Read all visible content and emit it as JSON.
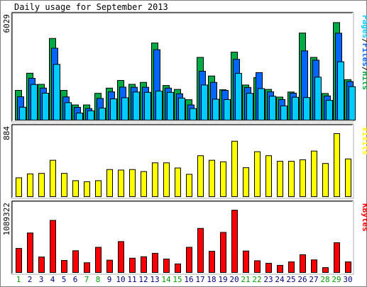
{
  "title": "Daily usage for September 2013",
  "days": [
    "1",
    "2",
    "3",
    "4",
    "5",
    "6",
    "7",
    "8",
    "9",
    "10",
    "11",
    "12",
    "13",
    "14",
    "15",
    "16",
    "17",
    "18",
    "19",
    "20",
    "21",
    "22",
    "23",
    "24",
    "25",
    "26",
    "27",
    "28",
    "29",
    "30"
  ],
  "weekend_days": [
    "1",
    "7",
    "8",
    "14",
    "15",
    "21",
    "22",
    "28",
    "29"
  ],
  "colors": {
    "hits": "#00aa44",
    "files": "#0066ff",
    "pages": "#00ccff",
    "visits": "#ffff00",
    "kbytes": "#ff0000",
    "weekend": "#00a000",
    "weekday": "#000080",
    "frame": "#808080"
  },
  "chart_data": [
    {
      "type": "bar",
      "title": "Daily usage for September 2013",
      "ymax_label": "6029",
      "ylabel_parts": [
        "Pages",
        "/",
        "Files",
        "/",
        "Hits"
      ],
      "ylim": [
        0,
        6029
      ],
      "categories": [
        "1",
        "2",
        "3",
        "4",
        "5",
        "6",
        "7",
        "8",
        "9",
        "10",
        "11",
        "12",
        "13",
        "14",
        "15",
        "16",
        "17",
        "18",
        "19",
        "20",
        "21",
        "22",
        "23",
        "24",
        "25",
        "26",
        "27",
        "28",
        "29",
        "30"
      ],
      "series": [
        {
          "name": "Hits",
          "values": [
            1820,
            2870,
            2190,
            5000,
            1820,
            930,
            930,
            1640,
            1960,
            2430,
            2190,
            2310,
            4720,
            2120,
            1880,
            1250,
            3840,
            2700,
            1860,
            4160,
            2150,
            2600,
            1880,
            1410,
            1720,
            5330,
            3840,
            1630,
            5970,
            2480
          ]
        },
        {
          "name": "Files",
          "values": [
            1430,
            2560,
            1960,
            4400,
            1420,
            780,
            710,
            1330,
            1730,
            2020,
            2010,
            2010,
            4310,
            1960,
            1610,
            930,
            2990,
            2310,
            1820,
            3720,
            2000,
            2910,
            1730,
            1260,
            1650,
            4240,
            3670,
            1480,
            5320,
            2360
          ]
        },
        {
          "name": "Pages",
          "values": [
            790,
            2180,
            1650,
            3410,
            1070,
            430,
            570,
            740,
            1300,
            1370,
            1720,
            1700,
            1780,
            1700,
            1350,
            710,
            2150,
            1280,
            1260,
            2860,
            1640,
            1930,
            1460,
            870,
            1400,
            1380,
            2630,
            1210,
            3570,
            2050
          ]
        }
      ]
    },
    {
      "type": "bar",
      "ymax_label": "884",
      "ylabel_parts": [
        "Visits"
      ],
      "ylim": [
        0,
        884
      ],
      "categories": [
        "1",
        "2",
        "3",
        "4",
        "5",
        "6",
        "7",
        "8",
        "9",
        "10",
        "11",
        "12",
        "13",
        "14",
        "15",
        "16",
        "17",
        "18",
        "19",
        "20",
        "21",
        "22",
        "23",
        "24",
        "25",
        "26",
        "27",
        "28",
        "29",
        "30"
      ],
      "series": [
        {
          "name": "Visits",
          "values": [
            264,
            319,
            326,
            510,
            326,
            224,
            210,
            224,
            380,
            373,
            380,
            352,
            474,
            474,
            402,
            313,
            574,
            510,
            489,
            777,
            406,
            630,
            574,
            496,
            496,
            517,
            639,
            465,
            884,
            529
          ]
        }
      ]
    },
    {
      "type": "bar",
      "ymax_label": "1089322",
      "ylabel_parts": [
        "KBytes"
      ],
      "ylim": [
        0,
        1089322
      ],
      "categories": [
        "1",
        "2",
        "3",
        "4",
        "5",
        "6",
        "7",
        "8",
        "9",
        "10",
        "11",
        "12",
        "13",
        "14",
        "15",
        "16",
        "17",
        "18",
        "19",
        "20",
        "21",
        "22",
        "23",
        "24",
        "25",
        "26",
        "27",
        "28",
        "29",
        "30"
      ],
      "series": [
        {
          "name": "KBytes",
          "values": [
            420000,
            690000,
            270000,
            910000,
            210000,
            380000,
            170000,
            440000,
            215000,
            540000,
            250000,
            275000,
            335000,
            235000,
            150000,
            440000,
            770000,
            370000,
            700000,
            1089322,
            375000,
            205000,
            160000,
            125000,
            185000,
            310000,
            220000,
            85000,
            520000,
            185000
          ]
        }
      ]
    }
  ]
}
